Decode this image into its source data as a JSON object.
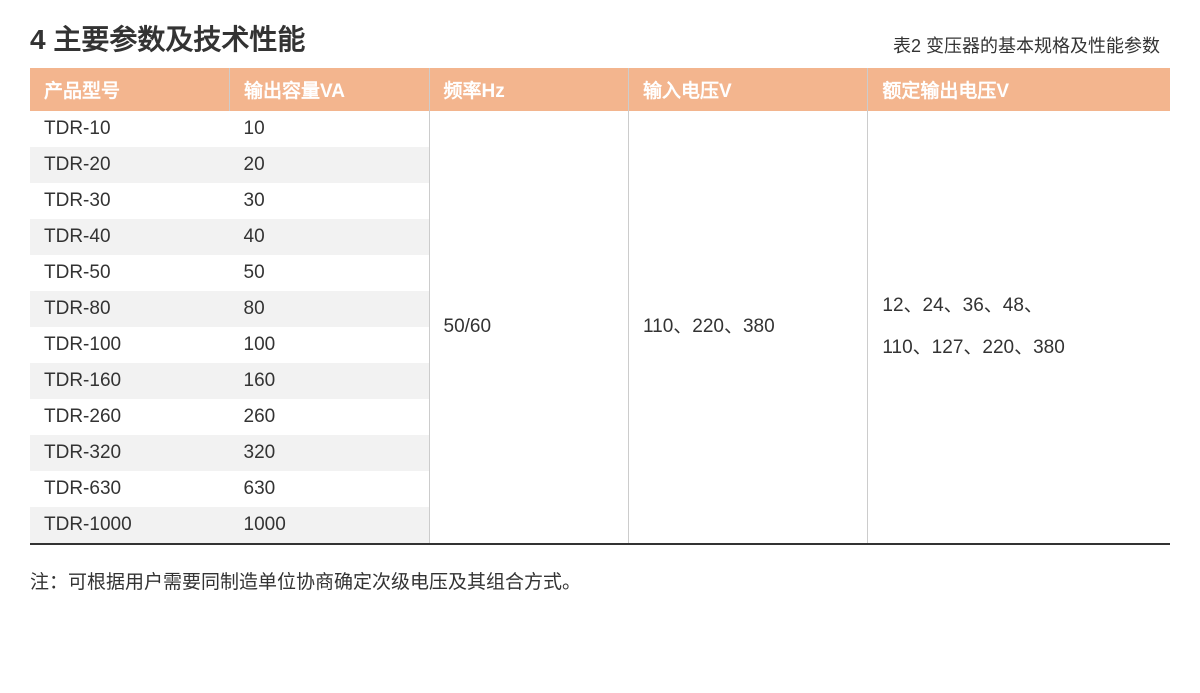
{
  "section_title": "4 主要参数及技术性能",
  "table_caption": "表2 变压器的基本规格及性能参数",
  "columns": [
    {
      "key": "model",
      "label": "产品型号"
    },
    {
      "key": "capacity",
      "label": "输出容量VA"
    },
    {
      "key": "freq",
      "label": "频率Hz"
    },
    {
      "key": "input",
      "label": "输入电压V"
    },
    {
      "key": "output",
      "label": "额定输出电压V"
    }
  ],
  "rows": [
    {
      "model": "TDR-10",
      "capacity": "10"
    },
    {
      "model": "TDR-20",
      "capacity": "20"
    },
    {
      "model": "TDR-30",
      "capacity": "30"
    },
    {
      "model": "TDR-40",
      "capacity": "40"
    },
    {
      "model": "TDR-50",
      "capacity": "50"
    },
    {
      "model": "TDR-80",
      "capacity": "80"
    },
    {
      "model": "TDR-100",
      "capacity": "100"
    },
    {
      "model": "TDR-160",
      "capacity": "160"
    },
    {
      "model": "TDR-260",
      "capacity": "260"
    },
    {
      "model": "TDR-320",
      "capacity": "320"
    },
    {
      "model": "TDR-630",
      "capacity": "630"
    },
    {
      "model": "TDR-1000",
      "capacity": "1000"
    }
  ],
  "merged": {
    "freq": "50/60",
    "input": "110、220、380",
    "output": "12、24、36、48、\n110、127、220、380"
  },
  "footnote": "注：可根据用户需要同制造单位协商确定次级电压及其组合方式。",
  "style": {
    "header_bg": "#f3b58e",
    "header_fg": "#ffffff",
    "row_alt_bg": "#f2f2f2",
    "border_color": "#cccccc",
    "bottom_border": "#333333",
    "text_color": "#333333",
    "title_fontsize": 28,
    "cell_fontsize": 19,
    "caption_fontsize": 18
  }
}
